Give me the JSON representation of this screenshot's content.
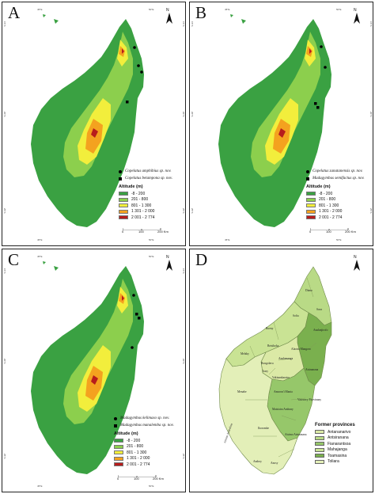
{
  "figure": {
    "panels": [
      {
        "id": "a",
        "letter": "A",
        "species": [
          {
            "name": "Copelatus amphibius sp. nov.",
            "symbol": "circle"
          },
          {
            "name": "Copelatus betampona sp. nov.",
            "symbol": "square"
          }
        ]
      },
      {
        "id": "b",
        "letter": "B",
        "species": [
          {
            "name": "Copelatus zanatanensis sp. nov.",
            "symbol": "circle"
          },
          {
            "name": "Madagymbus semifactus sp. nov.",
            "symbol": "square"
          }
        ]
      },
      {
        "id": "c",
        "letter": "C",
        "species": [
          {
            "name": "Madagymbus kelimaso sp. nov.",
            "symbol": "circle"
          },
          {
            "name": "Madagymbus manalemba sp. nov.",
            "symbol": "square"
          }
        ]
      },
      {
        "id": "d",
        "letter": "D"
      }
    ],
    "graticule": {
      "top": [
        "45°E",
        "50°E"
      ],
      "bottom": [
        "45°E",
        "50°E"
      ],
      "left": [
        "15°S",
        "20°S",
        "25°S"
      ],
      "right": [
        "15°S",
        "20°S",
        "25°S"
      ]
    },
    "north_label": "N",
    "altitude_legend": {
      "title": "Altitude (m)",
      "classes": [
        {
          "label": "-8 - 200",
          "color": "#3aa142"
        },
        {
          "label": "201 - 800",
          "color": "#8ccf4d"
        },
        {
          "label": "801 - 1 300",
          "color": "#f2ee3c"
        },
        {
          "label": "1 301 - 2 000",
          "color": "#f4a21f"
        },
        {
          "label": "2 001 - 2 774",
          "color": "#b71c1c"
        }
      ]
    },
    "scale_bar": {
      "labels": [
        "0",
        "100",
        "200 Km"
      ]
    },
    "provinces_legend": {
      "title": "Former provinces",
      "items": [
        {
          "label": "Antananarivo",
          "color": "#dbe9a6"
        },
        {
          "label": "Antsiranana",
          "color": "#b9da86"
        },
        {
          "label": "Fianarantsoa",
          "color": "#96c76a"
        },
        {
          "label": "Mahajanga",
          "color": "#c9e394"
        },
        {
          "label": "Toamasina",
          "color": "#7ab04e"
        },
        {
          "label": "Toliara",
          "color": "#e3efb8"
        }
      ]
    },
    "districts": [
      "Diana",
      "Sava",
      "Sofia",
      "Boeny",
      "Betsiboka",
      "Melaky",
      "Analanjirofo",
      "Alaotra Mangoro",
      "Bongolava",
      "Analamanga",
      "Itasy",
      "Vakinankaratra",
      "Atsinanana",
      "Menabe",
      "Amoron'i Mania",
      "Matsiatra Ambony",
      "Vatovavy Fitovinany",
      "Ihorombe",
      "Atsimo Andrefana",
      "Atsimo Atsinanana",
      "Androy",
      "Anosy"
    ]
  }
}
